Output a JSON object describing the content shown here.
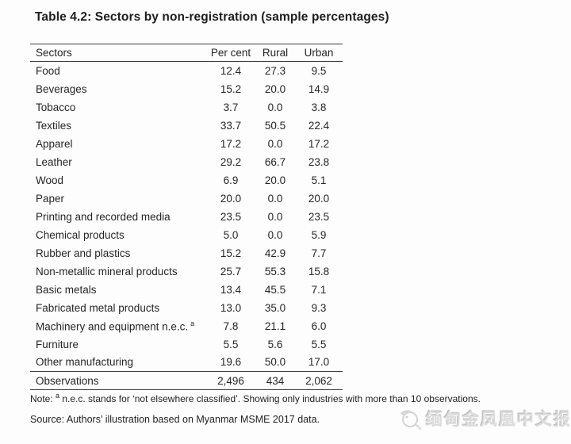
{
  "page": {
    "title": "Table 4.2: Sectors by non-registration (sample percentages)",
    "note": {
      "prefix": "Note: ",
      "sup": "a",
      "body": " n.e.c. stands for ‘not elsewhere classified’. Showing only industries with more than 10 observations."
    },
    "source": "Source: Authors’ illustration based on Myanmar MSME 2017 data.",
    "watermark": {
      "icon": "phoenix-logo",
      "text": "缅甸金凤凰中文报社"
    }
  },
  "chart_data": {
    "type": "table",
    "title": "Table 4.2: Sectors by non-registration (sample percentages)",
    "headers": [
      "Sectors",
      "Per cent",
      "Rural",
      "Urban"
    ],
    "rows": [
      {
        "sector": "Food",
        "per_cent": "12.4",
        "rural": "27.3",
        "urban": "9.5"
      },
      {
        "sector": "Beverages",
        "per_cent": "15.2",
        "rural": "20.0",
        "urban": "14.9"
      },
      {
        "sector": "Tobacco",
        "per_cent": "3.7",
        "rural": "0.0",
        "urban": "3.8"
      },
      {
        "sector": "Textiles",
        "per_cent": "33.7",
        "rural": "50.5",
        "urban": "22.4"
      },
      {
        "sector": "Apparel",
        "per_cent": "17.2",
        "rural": "0.0",
        "urban": "17.2"
      },
      {
        "sector": "Leather",
        "per_cent": "29.2",
        "rural": "66.7",
        "urban": "23.8"
      },
      {
        "sector": "Wood",
        "per_cent": "6.9",
        "rural": "20.0",
        "urban": "5.1"
      },
      {
        "sector": "Paper",
        "per_cent": "20.0",
        "rural": "0.0",
        "urban": "20.0"
      },
      {
        "sector": "Printing and recorded media",
        "per_cent": "23.5",
        "rural": "0.0",
        "urban": "23.5"
      },
      {
        "sector": "Chemical products",
        "per_cent": "5.0",
        "rural": "0.0",
        "urban": "5.9"
      },
      {
        "sector": "Rubber and plastics",
        "per_cent": "15.2",
        "rural": "42.9",
        "urban": "7.7"
      },
      {
        "sector": "Non-metallic mineral products",
        "per_cent": "25.7",
        "rural": "55.3",
        "urban": "15.8"
      },
      {
        "sector": "Basic metals",
        "per_cent": "13.4",
        "rural": "45.5",
        "urban": "7.1"
      },
      {
        "sector": "Fabricated metal products",
        "per_cent": "13.0",
        "rural": "35.0",
        "urban": "9.3"
      },
      {
        "sector": "Machinery and equipment n.e.c.",
        "note_mark": "a",
        "per_cent": "7.8",
        "rural": "21.1",
        "urban": "6.0"
      },
      {
        "sector": "Furniture",
        "per_cent": "5.5",
        "rural": "5.6",
        "urban": "5.5"
      },
      {
        "sector": "Other manufacturing",
        "per_cent": "19.6",
        "rural": "50.0",
        "urban": "17.0"
      },
      {
        "sector": "Observations",
        "per_cent": "2,496",
        "rural": "434",
        "urban": "2,062",
        "total": true
      }
    ]
  }
}
